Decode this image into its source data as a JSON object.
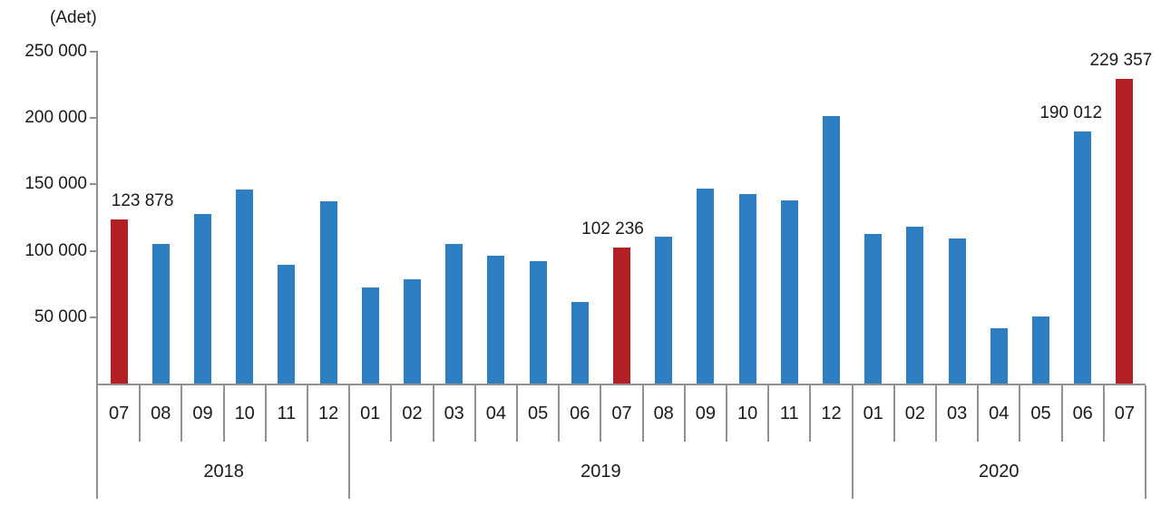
{
  "chart_data": {
    "type": "bar",
    "title": "",
    "unit_label": "(Adet)",
    "xlabel": "",
    "ylabel": "",
    "ylim": [
      0,
      250000
    ],
    "grid": false,
    "legend": "none",
    "y_ticks": [
      {
        "value": 250000,
        "label": "250 000"
      },
      {
        "value": 200000,
        "label": "200 000"
      },
      {
        "value": 150000,
        "label": "150 000"
      },
      {
        "value": 100000,
        "label": "100 000"
      },
      {
        "value": 50000,
        "label": "50 000"
      }
    ],
    "colors": {
      "bar": "#2d7fc2",
      "highlight": "#b22025",
      "axis": "#909090",
      "text": "#1a1a1a"
    },
    "year_groups": [
      {
        "label": "2018",
        "count": 6
      },
      {
        "label": "2019",
        "count": 12
      },
      {
        "label": "2020",
        "count": 7
      }
    ],
    "bars": [
      {
        "year": "2018",
        "month": "07",
        "value": 123878,
        "highlight": true,
        "annotation": "123 878",
        "annotation_dx": 26
      },
      {
        "year": "2018",
        "month": "08",
        "value": 105000,
        "highlight": false
      },
      {
        "year": "2018",
        "month": "09",
        "value": 128000,
        "highlight": false
      },
      {
        "year": "2018",
        "month": "10",
        "value": 146500,
        "highlight": false
      },
      {
        "year": "2018",
        "month": "11",
        "value": 89500,
        "highlight": false
      },
      {
        "year": "2018",
        "month": "12",
        "value": 137000,
        "highlight": false
      },
      {
        "year": "2019",
        "month": "01",
        "value": 72500,
        "highlight": false
      },
      {
        "year": "2019",
        "month": "02",
        "value": 78500,
        "highlight": false
      },
      {
        "year": "2019",
        "month": "03",
        "value": 105000,
        "highlight": false
      },
      {
        "year": "2019",
        "month": "04",
        "value": 96500,
        "highlight": false
      },
      {
        "year": "2019",
        "month": "05",
        "value": 92000,
        "highlight": false
      },
      {
        "year": "2019",
        "month": "06",
        "value": 61500,
        "highlight": false
      },
      {
        "year": "2019",
        "month": "07",
        "value": 102236,
        "highlight": true,
        "annotation": "102 236",
        "annotation_dx": -10
      },
      {
        "year": "2019",
        "month": "08",
        "value": 110500,
        "highlight": false
      },
      {
        "year": "2019",
        "month": "09",
        "value": 147000,
        "highlight": false
      },
      {
        "year": "2019",
        "month": "10",
        "value": 143000,
        "highlight": false
      },
      {
        "year": "2019",
        "month": "11",
        "value": 138000,
        "highlight": false
      },
      {
        "year": "2019",
        "month": "12",
        "value": 201500,
        "highlight": false
      },
      {
        "year": "2020",
        "month": "01",
        "value": 113000,
        "highlight": false
      },
      {
        "year": "2020",
        "month": "02",
        "value": 118000,
        "highlight": false
      },
      {
        "year": "2020",
        "month": "03",
        "value": 109000,
        "highlight": false
      },
      {
        "year": "2020",
        "month": "04",
        "value": 42000,
        "highlight": false
      },
      {
        "year": "2020",
        "month": "05",
        "value": 50500,
        "highlight": false
      },
      {
        "year": "2020",
        "month": "06",
        "value": 190012,
        "highlight": false,
        "annotation": "190 012",
        "annotation_dx": -13
      },
      {
        "year": "2020",
        "month": "07",
        "value": 229357,
        "highlight": true,
        "annotation": "229 357",
        "annotation_dx": -4
      }
    ]
  }
}
